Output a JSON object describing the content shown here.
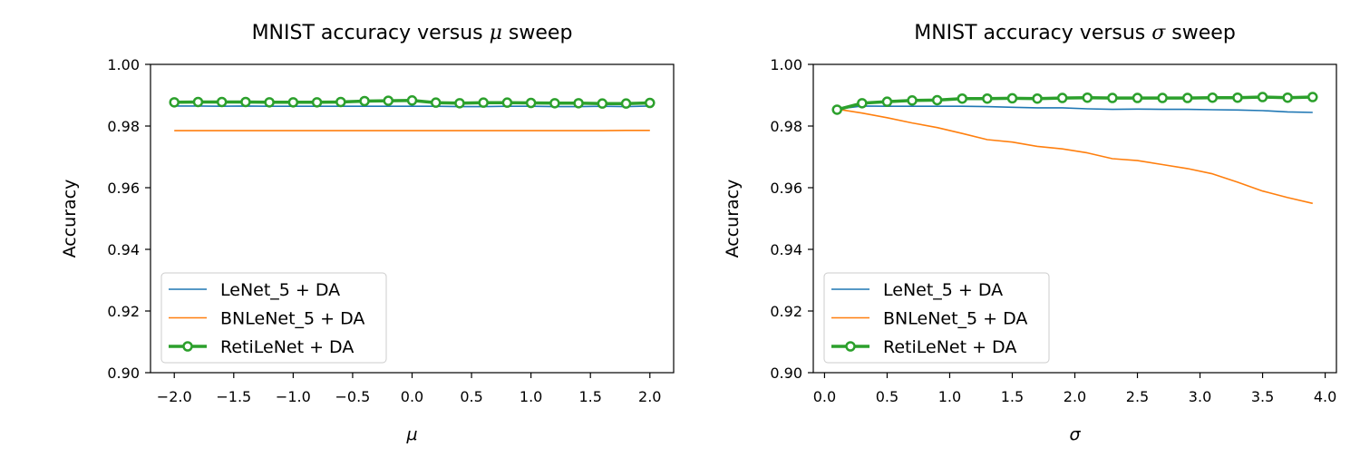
{
  "chart_data": [
    {
      "type": "line",
      "title": "MNIST accuracy versus μ sweep",
      "title_prefix": "MNIST accuracy versus ",
      "title_symbol": "μ",
      "title_suffix": " sweep",
      "xlabel": "μ",
      "ylabel": "Accuracy",
      "xlim": [
        -2.2,
        2.2
      ],
      "ylim": [
        0.9,
        1.0
      ],
      "xticks": [
        -2.0,
        -1.5,
        -1.0,
        -0.5,
        0.0,
        0.5,
        1.0,
        1.5,
        2.0
      ],
      "xtick_labels": [
        "−2.0",
        "−1.5",
        "−1.0",
        "−0.5",
        "0.0",
        "0.5",
        "1.0",
        "1.5",
        "2.0"
      ],
      "yticks": [
        0.9,
        0.92,
        0.94,
        0.96,
        0.98,
        1.0
      ],
      "ytick_labels": [
        "0.90",
        "0.92",
        "0.94",
        "0.96",
        "0.98",
        "1.00"
      ],
      "legend_position": "lower-left",
      "x": [
        -2.0,
        -1.8,
        -1.6,
        -1.4,
        -1.2,
        -1.0,
        -0.8,
        -0.6,
        -0.4,
        -0.2,
        0.0,
        0.2,
        0.4,
        0.6,
        0.8,
        1.0,
        1.2,
        1.4,
        1.6,
        1.8,
        2.0
      ],
      "series": [
        {
          "name": "LeNet_5 + DA",
          "color": "#1f77b4",
          "marker": false,
          "values": [
            0.9865,
            0.9865,
            0.9864,
            0.9865,
            0.9864,
            0.9864,
            0.9864,
            0.9864,
            0.9864,
            0.9864,
            0.9864,
            0.9864,
            0.9863,
            0.9863,
            0.9864,
            0.9864,
            0.9863,
            0.9863,
            0.9864,
            0.9863,
            0.9865
          ]
        },
        {
          "name": "BNLeNet_5 + DA",
          "color": "#ff7f0e",
          "marker": false,
          "values": [
            0.9785,
            0.9785,
            0.9785,
            0.9785,
            0.9785,
            0.9785,
            0.9785,
            0.9785,
            0.9785,
            0.9785,
            0.9785,
            0.9785,
            0.9785,
            0.9785,
            0.9785,
            0.9785,
            0.9785,
            0.9785,
            0.9785,
            0.9786,
            0.9786
          ]
        },
        {
          "name": "RetiLeNet + DA",
          "color": "#2ca02c",
          "marker": true,
          "values": [
            0.9877,
            0.9878,
            0.9878,
            0.9878,
            0.9877,
            0.9877,
            0.9877,
            0.9878,
            0.9881,
            0.9882,
            0.9883,
            0.9876,
            0.9874,
            0.9876,
            0.9876,
            0.9875,
            0.9874,
            0.9874,
            0.9873,
            0.9873,
            0.9875
          ]
        }
      ]
    },
    {
      "type": "line",
      "title": "MNIST accuracy versus σ sweep",
      "title_prefix": "MNIST accuracy versus ",
      "title_symbol": "σ",
      "title_suffix": " sweep",
      "xlabel": "σ",
      "ylabel": "Accuracy",
      "xlim": [
        -0.09,
        4.09
      ],
      "ylim": [
        0.9,
        1.0
      ],
      "xticks": [
        0.0,
        0.5,
        1.0,
        1.5,
        2.0,
        2.5,
        3.0,
        3.5,
        4.0
      ],
      "xtick_labels": [
        "0.0",
        "0.5",
        "1.0",
        "1.5",
        "2.0",
        "2.5",
        "3.0",
        "3.5",
        "4.0"
      ],
      "yticks": [
        0.9,
        0.92,
        0.94,
        0.96,
        0.98,
        1.0
      ],
      "ytick_labels": [
        "0.90",
        "0.92",
        "0.94",
        "0.96",
        "0.98",
        "1.00"
      ],
      "legend_position": "lower-left",
      "x": [
        0.1,
        0.3,
        0.5,
        0.7,
        0.9,
        1.1,
        1.3,
        1.5,
        1.7,
        1.9,
        2.1,
        2.3,
        2.5,
        2.7,
        2.9,
        3.1,
        3.3,
        3.5,
        3.7,
        3.9
      ],
      "series": [
        {
          "name": "LeNet_5 + DA",
          "color": "#1f77b4",
          "marker": false,
          "values": [
            0.9855,
            0.9865,
            0.9864,
            0.9864,
            0.9864,
            0.9864,
            0.9863,
            0.9861,
            0.9859,
            0.9859,
            0.9856,
            0.9854,
            0.9855,
            0.9854,
            0.9854,
            0.9853,
            0.9852,
            0.985,
            0.9846,
            0.9844
          ]
        },
        {
          "name": "BNLeNet_5 + DA",
          "color": "#ff7f0e",
          "marker": false,
          "values": [
            0.9855,
            0.9842,
            0.9827,
            0.981,
            0.9795,
            0.9776,
            0.9756,
            0.9748,
            0.9734,
            0.9726,
            0.9713,
            0.9694,
            0.9688,
            0.9675,
            0.9662,
            0.9645,
            0.9618,
            0.9589,
            0.9568,
            0.9549
          ]
        },
        {
          "name": "RetiLeNet + DA",
          "color": "#2ca02c",
          "marker": true,
          "values": [
            0.9853,
            0.9874,
            0.9879,
            0.9883,
            0.9884,
            0.9889,
            0.9889,
            0.989,
            0.9889,
            0.9891,
            0.9892,
            0.9891,
            0.9891,
            0.9891,
            0.9891,
            0.9892,
            0.9892,
            0.9894,
            0.9892,
            0.9894
          ]
        }
      ]
    }
  ]
}
